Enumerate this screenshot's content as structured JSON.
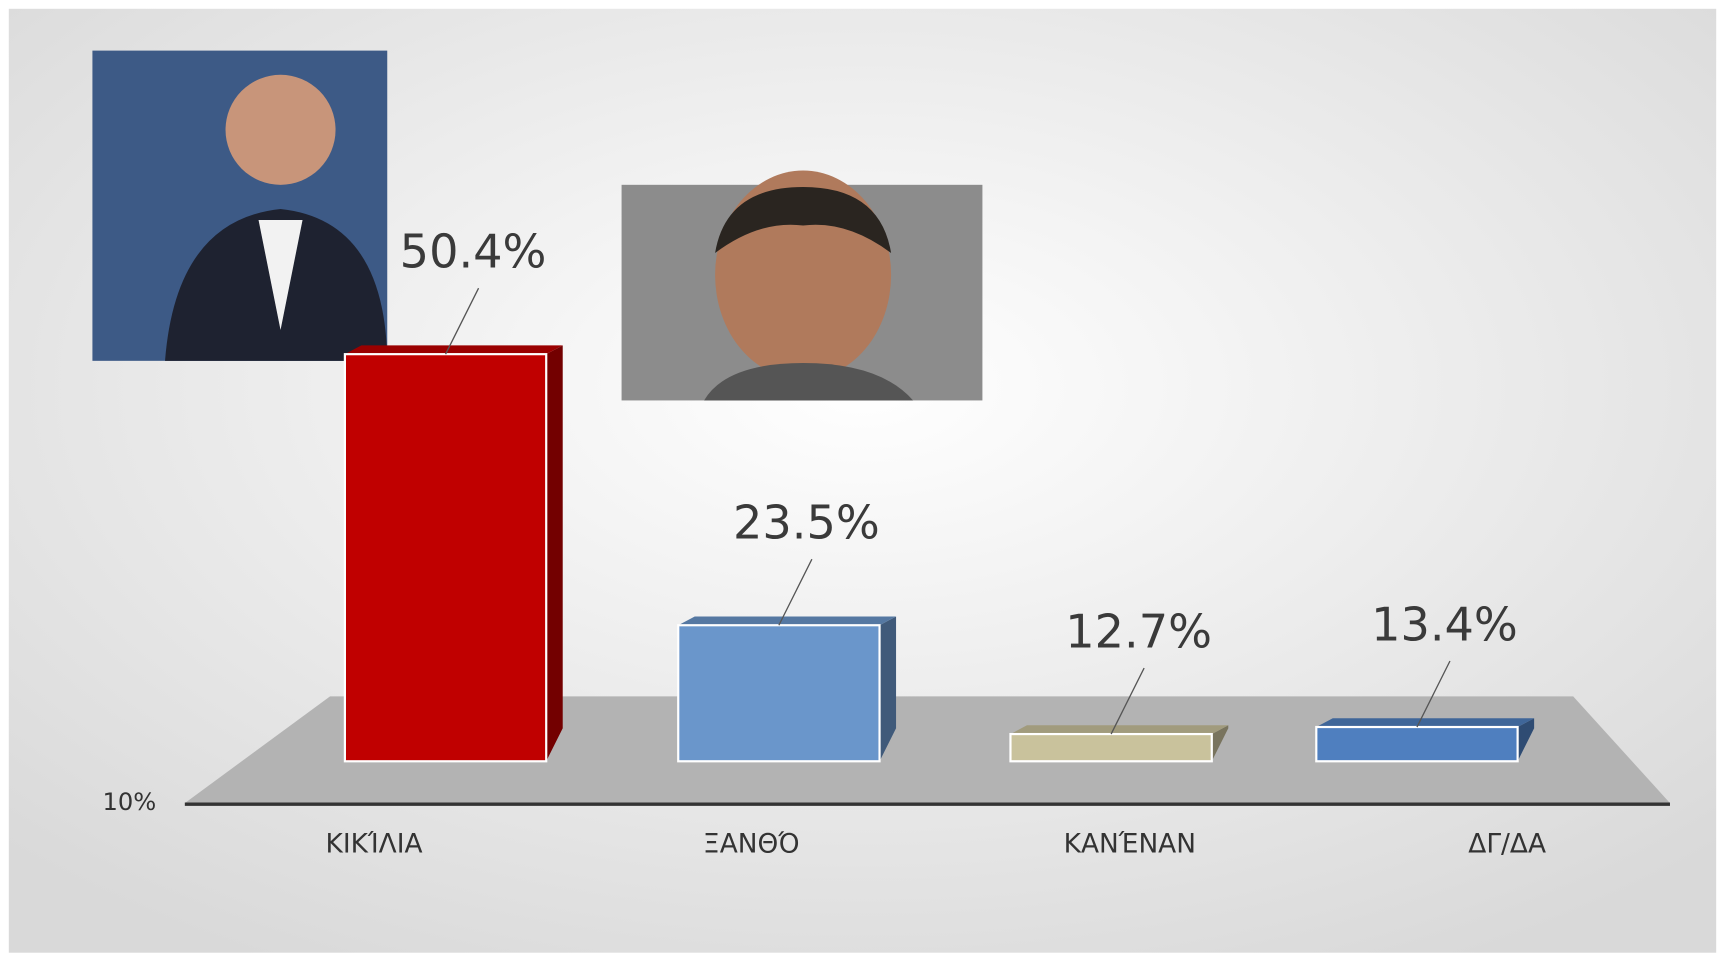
{
  "chart_data": {
    "type": "bar3d",
    "categories": [
      "ΚΙΚΊΛΙΑ",
      "ΞΑΝΘΌ",
      "ΚΑΝΈΝΑΝ",
      "ΔΓ/ΔΑ"
    ],
    "values": [
      50.4,
      23.5,
      12.7,
      13.4
    ],
    "value_labels": [
      "50.4%",
      "23.5%",
      "12.7%",
      "13.4%"
    ],
    "colors": [
      "#c00000",
      "#6a96cb",
      "#c9c29c",
      "#4f7fbf"
    ],
    "ylim": [
      10,
      60
    ],
    "yticks": [
      {
        "value": 10,
        "label": "10%"
      }
    ]
  }
}
